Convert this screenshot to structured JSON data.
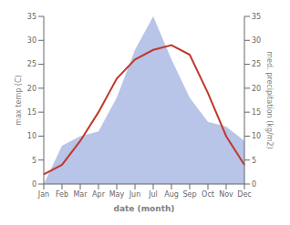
{
  "chart_data": {
    "type": "line",
    "xlabel": "date (month)",
    "ylabel": "max temp (C)",
    "y2label": "med. precipitation (kg/m2)",
    "categories": [
      "Jan",
      "Feb",
      "Mar",
      "Apr",
      "May",
      "Jun",
      "Jul",
      "Aug",
      "Sep",
      "Oct",
      "Nov",
      "Dec"
    ],
    "series": [
      {
        "type": "area",
        "axis": "y2",
        "color": "#b8c4e8",
        "values": [
          0,
          8,
          10,
          11,
          18,
          28,
          35,
          26,
          18,
          13,
          12,
          9
        ]
      },
      {
        "type": "line",
        "color": "#c0392b",
        "values": [
          2,
          4,
          9,
          15,
          22,
          26,
          28,
          29,
          27,
          19,
          10,
          4
        ]
      }
    ],
    "ylim": [
      0,
      35
    ],
    "yticks": [
      0,
      5,
      10,
      15,
      20,
      25,
      30,
      35
    ],
    "y2lim": [
      0,
      35
    ],
    "y2ticks": [
      0,
      5,
      10,
      15,
      20,
      25,
      30,
      35
    ]
  }
}
